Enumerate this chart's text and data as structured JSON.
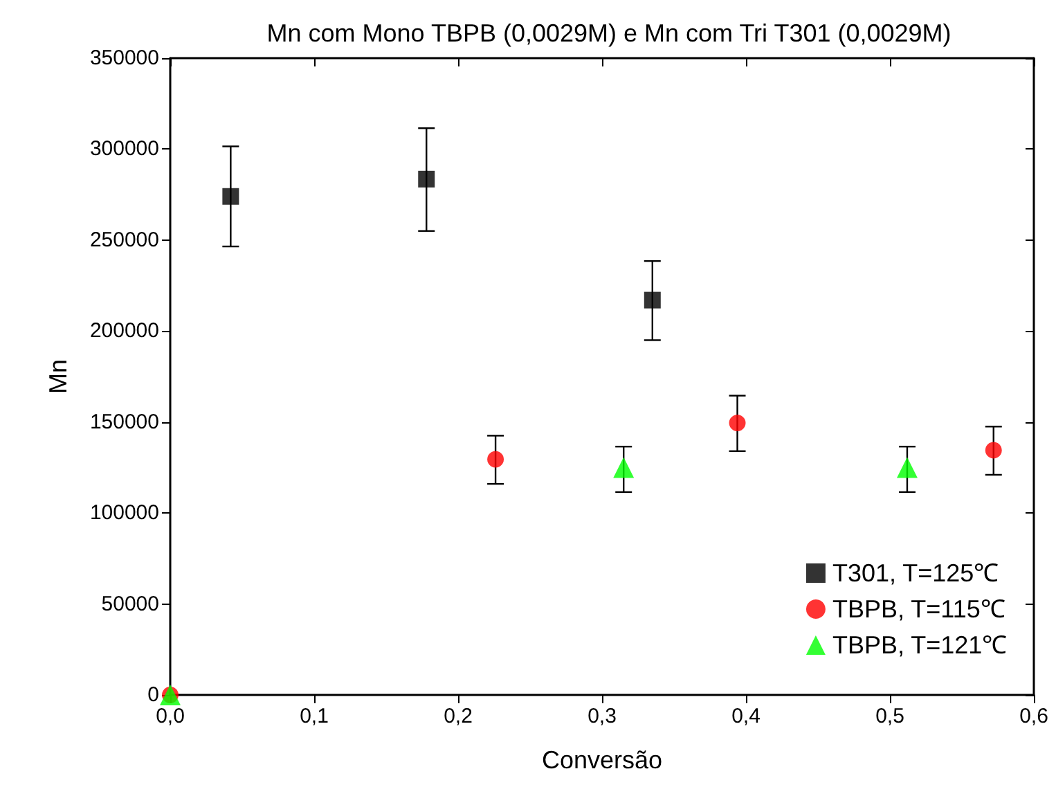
{
  "chart_data": {
    "type": "scatter",
    "title": "Mn com Mono TBPB (0,0029M) e Mn com Tri T301 (0,0029M)",
    "xlabel": "Conversão",
    "ylabel": "Mn",
    "xlim": [
      0,
      0.6
    ],
    "xticks": [
      {
        "value": 0,
        "label": "0,0"
      },
      {
        "value": 0.1,
        "label": "0,1"
      },
      {
        "value": 0.2,
        "label": "0,2"
      },
      {
        "value": 0.3,
        "label": "0,3"
      },
      {
        "value": 0.4,
        "label": "0,4"
      },
      {
        "value": 0.5,
        "label": "0,5"
      },
      {
        "value": 0.6,
        "label": "0,6"
      }
    ],
    "ylim": [
      0,
      350000
    ],
    "yticks": [
      0,
      50000,
      100000,
      150000,
      200000,
      250000,
      300000,
      350000
    ],
    "legend": "bottom right",
    "grid": false,
    "series": [
      {
        "name": "T301, T=125℃",
        "color": "#000000",
        "marker": "square",
        "x": [
          0.042,
          0.178,
          0.335
        ],
        "values": [
          274000,
          283500,
          217000
        ],
        "errors": [
          [
            246500,
            301500
          ],
          [
            255000,
            311500
          ],
          [
            195000,
            238500
          ]
        ]
      },
      {
        "name": "TBPB, T=115℃",
        "color": "#ff0000",
        "marker": "circle",
        "x": [
          0,
          0.226,
          0.394,
          0.572
        ],
        "values": [
          0,
          129500,
          149500,
          134500
        ],
        "errors": [
          null,
          [
            116000,
            142500
          ],
          [
            134000,
            164500
          ],
          [
            121000,
            147500
          ]
        ]
      },
      {
        "name": "TBPB, T=121℃",
        "color": "#00ff00",
        "marker": "triangle",
        "x": [
          0,
          0.315,
          0.512
        ],
        "values": [
          0,
          125000,
          125000
        ],
        "errors": [
          null,
          [
            111500,
            136500
          ],
          [
            111500,
            136500
          ]
        ]
      }
    ]
  }
}
